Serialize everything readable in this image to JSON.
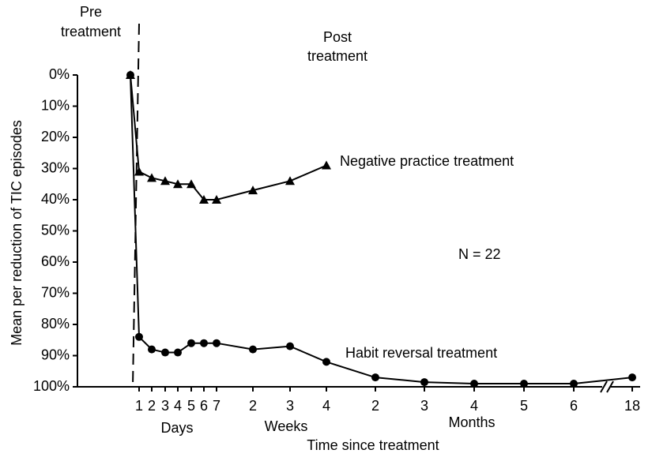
{
  "chart_data": {
    "type": "line",
    "y_axis_label": "Mean per reduction of TIC episodes",
    "x_axis_label": "Time since treatment",
    "x_groups": [
      "Days",
      "Weeks",
      "Months"
    ],
    "annotations": {
      "pre": [
        "Pre",
        "treatment"
      ],
      "post": [
        "Post",
        "treatment"
      ],
      "n": "N = 22"
    },
    "categories": [
      null,
      "1",
      "2",
      "3",
      "4",
      "5",
      "6",
      "7",
      "2",
      "3",
      "4",
      "2",
      "3",
      "4",
      "5",
      "6",
      "18"
    ],
    "series": [
      {
        "name": "Negative practice treatment",
        "color": "#000000",
        "marker": "triangle",
        "values": [
          0,
          31,
          33,
          34,
          35,
          35,
          40,
          40,
          37,
          34,
          29,
          null,
          null,
          null,
          null,
          null,
          null
        ]
      },
      {
        "name": "Habit reversal treatment",
        "color": "#000000",
        "marker": "circle",
        "values": [
          0,
          84,
          88,
          89,
          89,
          86,
          86,
          86,
          88,
          87,
          92,
          97,
          98.5,
          99,
          99,
          99,
          97
        ]
      }
    ],
    "ylim": [
      0,
      100
    ],
    "inverted_y": true,
    "yticks": [
      {
        "value": 0,
        "label": "0%"
      },
      {
        "value": 10,
        "label": "10%"
      },
      {
        "value": 20,
        "label": "20%"
      },
      {
        "value": 30,
        "label": "30%"
      },
      {
        "value": 40,
        "label": "40%"
      },
      {
        "value": 50,
        "label": "50%"
      },
      {
        "value": 60,
        "label": "60%"
      },
      {
        "value": 70,
        "label": "70%"
      },
      {
        "value": 80,
        "label": "80%"
      },
      {
        "value": 90,
        "label": "90%"
      },
      {
        "value": 100,
        "label": "100%"
      }
    ]
  }
}
